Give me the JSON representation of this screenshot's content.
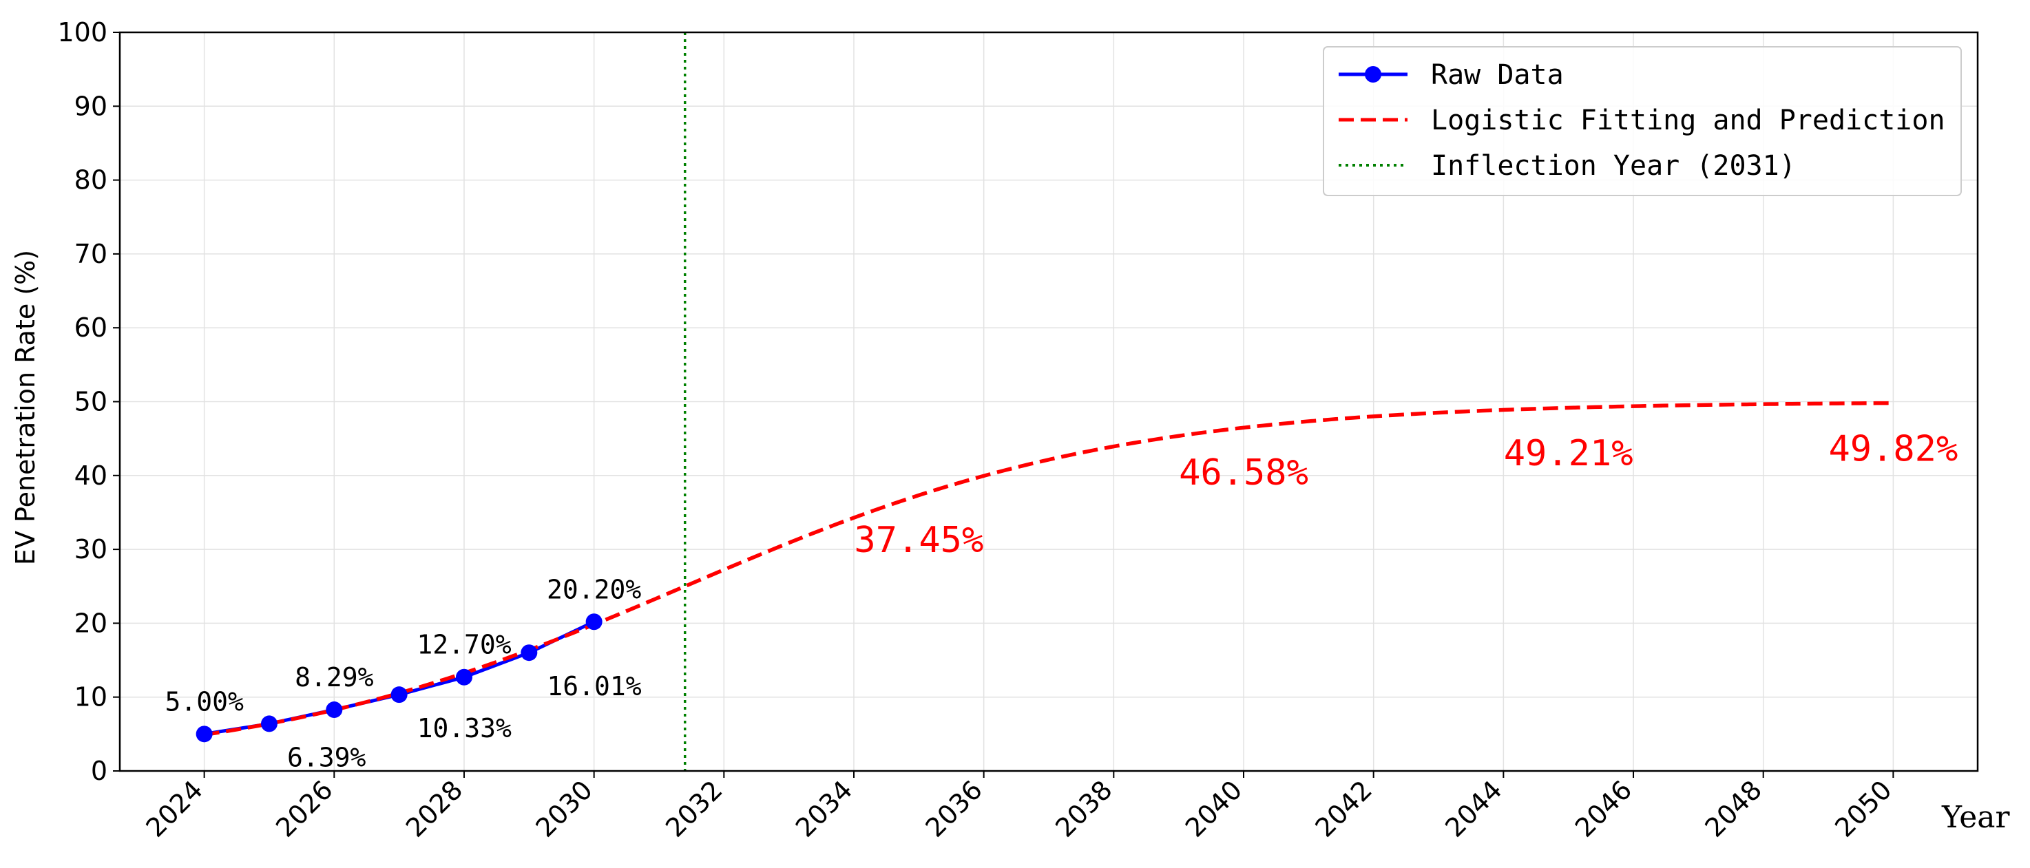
{
  "chart_data": {
    "type": "line",
    "xlabel": "Year",
    "ylabel": "EV Penetration Rate (%)",
    "xlim": [
      2022.7,
      2051.3
    ],
    "ylim": [
      0,
      100
    ],
    "x_ticks": [
      2024,
      2026,
      2028,
      2030,
      2032,
      2034,
      2036,
      2038,
      2040,
      2042,
      2044,
      2046,
      2048,
      2050
    ],
    "y_ticks": [
      0,
      10,
      20,
      30,
      40,
      50,
      60,
      70,
      80,
      90,
      100
    ],
    "grid": true,
    "legend_position": "top-right",
    "colors": {
      "raw": "#0000ff",
      "fit": "#ff0000",
      "inflection": "#008000"
    },
    "series": [
      {
        "name": "Raw Data",
        "style": "solid-line-with-circle-markers",
        "x": [
          2024,
          2025,
          2026,
          2027,
          2028,
          2029,
          2030
        ],
        "y": [
          5.0,
          6.39,
          8.29,
          10.33,
          12.7,
          16.01,
          20.2
        ]
      },
      {
        "name": "Logistic Fitting and Prediction",
        "style": "dashed-line",
        "model": {
          "K": 50.0,
          "r": 0.3,
          "t0": 2031.4
        },
        "x_range": [
          2024,
          2050
        ]
      },
      {
        "name": "Inflection Year (2031)",
        "style": "dotted-vertical-line",
        "x": 2031.4
      }
    ],
    "data_labels": [
      {
        "text": "5.00%",
        "x": 2024,
        "y": 5.0,
        "pos": "above"
      },
      {
        "text": "6.39%",
        "x": 2025,
        "y": 6.39,
        "pos": "below"
      },
      {
        "text": "8.29%",
        "x": 2026,
        "y": 8.29,
        "pos": "above"
      },
      {
        "text": "10.33%",
        "x": 2027,
        "y": 10.33,
        "pos": "below"
      },
      {
        "text": "12.70%",
        "x": 2028,
        "y": 12.7,
        "pos": "above"
      },
      {
        "text": "16.01%",
        "x": 2029,
        "y": 16.01,
        "pos": "below"
      },
      {
        "text": "20.20%",
        "x": 2030,
        "y": 20.2,
        "pos": "above"
      }
    ],
    "prediction_labels": [
      {
        "text": "37.45%",
        "x": 2035,
        "y": 37.45
      },
      {
        "text": "46.58%",
        "x": 2040,
        "y": 46.58
      },
      {
        "text": "49.21%",
        "x": 2045,
        "y": 49.21
      },
      {
        "text": "49.82%",
        "x": 2050,
        "y": 49.82
      }
    ]
  }
}
